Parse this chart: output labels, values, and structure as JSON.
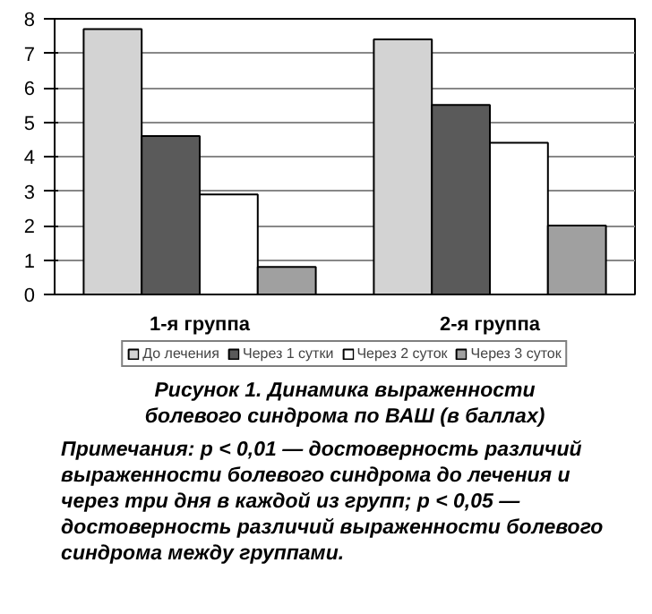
{
  "chart_data": {
    "type": "bar",
    "title": "Рисунок 1. Динамика выраженности болевого синдрома по ВАШ (в баллах)",
    "annotations": [
      "Примечания: p < 0,01 — достоверность различий выраженности болевого синдрома до лечения и через три дня в каждой из групп; p < 0,05 — достоверность различий выраженности болевого синдрома между группами."
    ],
    "categories": [
      "1-я группа",
      "2-я группа"
    ],
    "series": [
      {
        "name": "До лечения",
        "color": "#d3d3d3",
        "values": [
          7.7,
          7.4
        ]
      },
      {
        "name": "Через 1 сутки",
        "color": "#5a5a5a",
        "values": [
          4.6,
          5.5
        ]
      },
      {
        "name": "Через 2 суток",
        "color": "#ffffff",
        "values": [
          2.9,
          4.4
        ]
      },
      {
        "name": "Через 3 суток",
        "color": "#a0a0a0",
        "values": [
          0.8,
          2.0
        ]
      }
    ],
    "ylim": [
      0,
      8
    ],
    "yticks": [
      0,
      1,
      2,
      3,
      4,
      5,
      6,
      7,
      8
    ],
    "grid": "y",
    "legend": "bottom"
  }
}
